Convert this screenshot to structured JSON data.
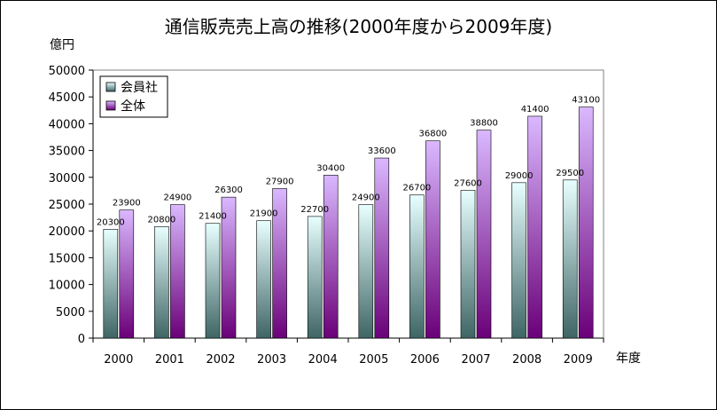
{
  "chart_data": {
    "type": "bar",
    "title": "通信販売売上高の推移(2000年度から2009年度)",
    "ylabel": "億円",
    "xlabel": "年度",
    "ylim": [
      0,
      50000
    ],
    "yticks": [
      0,
      5000,
      10000,
      15000,
      20000,
      25000,
      30000,
      35000,
      40000,
      45000,
      50000
    ],
    "categories": [
      "2000",
      "2001",
      "2002",
      "2003",
      "2004",
      "2005",
      "2006",
      "2007",
      "2008",
      "2009"
    ],
    "series": [
      {
        "name": "会員社",
        "values": [
          20300,
          20800,
          21400,
          21900,
          22700,
          24900,
          26700,
          27600,
          29000,
          29500
        ]
      },
      {
        "name": "全体",
        "values": [
          23900,
          24900,
          26300,
          27900,
          30400,
          33600,
          36800,
          38800,
          41400,
          43100
        ]
      }
    ],
    "data_labels": {
      "会員社": [
        "20300",
        "20800",
        "21400",
        "21900",
        "22700",
        "24900",
        "26700",
        "27600",
        "29000",
        "29500"
      ],
      "全体": [
        "23900",
        "24900",
        "26300",
        "27900",
        "30400",
        "33600",
        "36800",
        "38800",
        "41400",
        "43100"
      ]
    },
    "legend_position": "top-left",
    "grid": false,
    "colors": {
      "series1_top": "#e8ffff",
      "series1_bottom": "#3f6565",
      "series2_top": "#dab8ff",
      "series2_bottom": "#6a0078"
    }
  }
}
